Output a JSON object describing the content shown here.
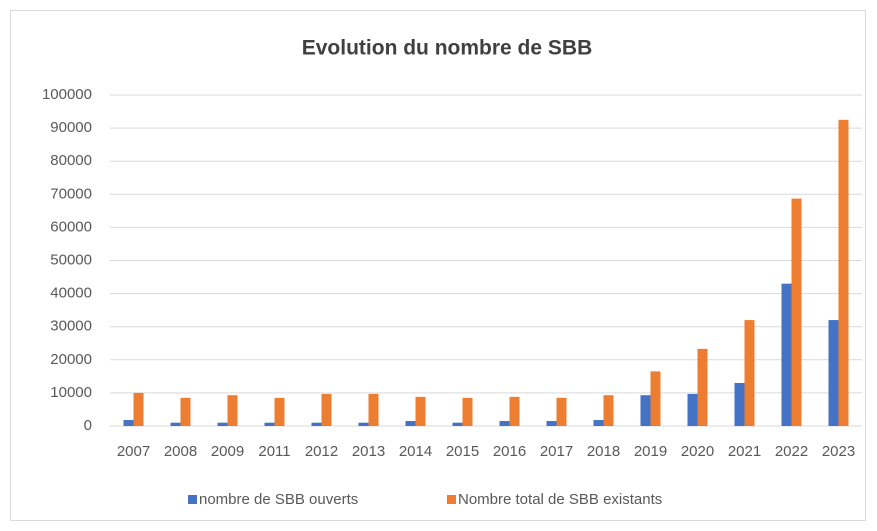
{
  "chart_data": {
    "type": "bar",
    "title": "Evolution du nombre de SBB",
    "categories": [
      "2007",
      "2008",
      "2009",
      "2011",
      "2012",
      "2013",
      "2014",
      "2015",
      "2016",
      "2017",
      "2018",
      "2019",
      "2020",
      "2021",
      "2022",
      "2023"
    ],
    "series": [
      {
        "name": "nombre de SBB ouverts",
        "color": "#4472c4",
        "values": [
          1800,
          1000,
          1000,
          1000,
          1000,
          1000,
          1500,
          1000,
          1500,
          1500,
          1800,
          9300,
          9700,
          13000,
          43000,
          32000
        ]
      },
      {
        "name": "Nombre total de SBB existants",
        "color": "#ed7d31",
        "values": [
          10000,
          8500,
          9300,
          8500,
          9700,
          9700,
          8800,
          8500,
          8800,
          8500,
          9300,
          16500,
          23300,
          32000,
          68700,
          92500
        ]
      }
    ],
    "ylim": [
      0,
      100000
    ],
    "yticks": [
      0,
      10000,
      20000,
      30000,
      40000,
      50000,
      60000,
      70000,
      80000,
      90000,
      100000
    ],
    "grid": true,
    "legend": "bottom"
  }
}
